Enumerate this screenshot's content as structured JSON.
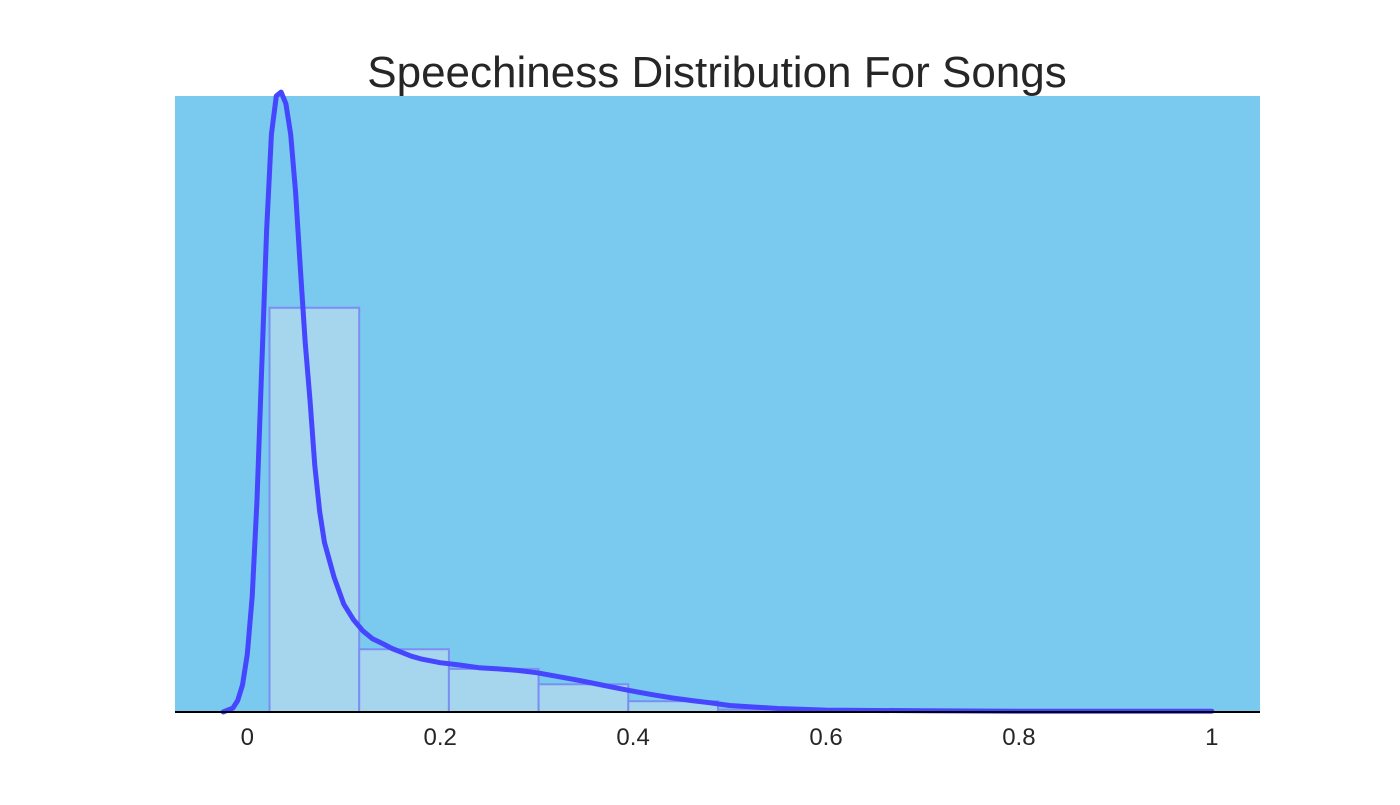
{
  "chart_data": {
    "type": "bar",
    "title": "Speechiness Distribution For Songs",
    "xlabel": "",
    "ylabel": "",
    "xlim": [
      -0.075,
      1.05
    ],
    "ylim": [
      0,
      16
    ],
    "grid": false,
    "colors": {
      "plot_background": "#79caee",
      "bar_fill": "#a6d6ee",
      "bar_edge": "#7b8ef2",
      "density_line": "#4646ff",
      "axis_line": "#000000",
      "text": "#262626"
    },
    "x_ticks": [
      {
        "value": 0,
        "label": "0"
      },
      {
        "value": 0.2,
        "label": "0.2"
      },
      {
        "value": 0.4,
        "label": "0.4"
      },
      {
        "value": 0.6,
        "label": "0.6"
      },
      {
        "value": 0.8,
        "label": "0.8"
      },
      {
        "value": 1,
        "label": "1"
      }
    ],
    "histogram": {
      "bins": [
        {
          "x0": 0.023,
          "x1": 0.116,
          "density": 10.5
        },
        {
          "x0": 0.116,
          "x1": 0.209,
          "density": 1.63
        },
        {
          "x0": 0.209,
          "x1": 0.302,
          "density": 1.12
        },
        {
          "x0": 0.302,
          "x1": 0.395,
          "density": 0.72
        },
        {
          "x0": 0.395,
          "x1": 0.488,
          "density": 0.28
        },
        {
          "x0": 0.488,
          "x1": 0.581,
          "density": 0.06
        },
        {
          "x0": 0.581,
          "x1": 0.674,
          "density": 0.03
        },
        {
          "x0": 0.674,
          "x1": 0.767,
          "density": 0.02
        },
        {
          "x0": 0.767,
          "x1": 0.86,
          "density": 0.01
        },
        {
          "x0": 0.86,
          "x1": 0.953,
          "density": 0.01
        }
      ]
    },
    "density_curve": {
      "x": [
        -0.025,
        -0.015,
        -0.01,
        -0.005,
        0.0,
        0.005,
        0.01,
        0.015,
        0.02,
        0.025,
        0.03,
        0.035,
        0.04,
        0.045,
        0.05,
        0.055,
        0.06,
        0.065,
        0.07,
        0.075,
        0.08,
        0.09,
        0.1,
        0.11,
        0.12,
        0.13,
        0.14,
        0.15,
        0.16,
        0.17,
        0.18,
        0.2,
        0.22,
        0.24,
        0.26,
        0.28,
        0.3,
        0.32,
        0.34,
        0.36,
        0.38,
        0.4,
        0.42,
        0.44,
        0.46,
        0.48,
        0.5,
        0.55,
        0.6,
        0.7,
        0.8,
        0.9,
        1.0
      ],
      "y": [
        0.0,
        0.1,
        0.3,
        0.7,
        1.5,
        3.0,
        5.5,
        9.0,
        12.5,
        15.0,
        16.0,
        16.1,
        15.8,
        15.0,
        13.5,
        11.5,
        9.6,
        8.1,
        6.4,
        5.2,
        4.4,
        3.5,
        2.8,
        2.4,
        2.1,
        1.9,
        1.78,
        1.65,
        1.55,
        1.45,
        1.38,
        1.28,
        1.22,
        1.15,
        1.12,
        1.08,
        1.02,
        0.93,
        0.84,
        0.74,
        0.64,
        0.54,
        0.45,
        0.37,
        0.3,
        0.24,
        0.17,
        0.09,
        0.05,
        0.03,
        0.02,
        0.02,
        0.02
      ]
    }
  }
}
